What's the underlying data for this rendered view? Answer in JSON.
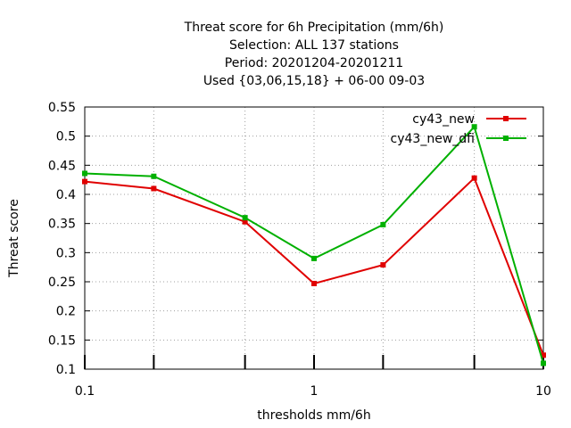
{
  "chart_data": {
    "type": "line",
    "title_lines": [
      "Threat score  for 6h Precipitation (mm/6h)",
      "Selection: ALL    137 stations",
      "Period: 20201204-20201211",
      "Used {03,06,15,18} + 06-00 09-03"
    ],
    "xlabel": "thresholds mm/6h",
    "ylabel": "Threat score",
    "x_scale": "log",
    "xlim": [
      0.1,
      10
    ],
    "ylim": [
      0.1,
      0.55
    ],
    "x_ticks": [
      "0.1",
      "1",
      "10"
    ],
    "y_ticks": [
      "0.1",
      "0.15",
      "0.2",
      "0.25",
      "0.3",
      "0.35",
      "0.4",
      "0.45",
      "0.5",
      "0.55"
    ],
    "x_minor_ticks": [
      0.2,
      0.5,
      2,
      5
    ],
    "grid": true,
    "legend_position": "top-right",
    "series": [
      {
        "name": "cy43_new",
        "color": "#e00000",
        "points": [
          [
            0.1,
            0.422
          ],
          [
            0.2,
            0.41
          ],
          [
            0.5,
            0.353
          ],
          [
            1,
            0.247
          ],
          [
            2,
            0.279
          ],
          [
            5,
            0.428
          ],
          [
            10,
            0.124
          ]
        ]
      },
      {
        "name": "cy43_new_dfi",
        "color": "#00b000",
        "points": [
          [
            0.1,
            0.436
          ],
          [
            0.2,
            0.431
          ],
          [
            0.5,
            0.36
          ],
          [
            1,
            0.29
          ],
          [
            2,
            0.348
          ],
          [
            5,
            0.516
          ],
          [
            10,
            0.11
          ]
        ]
      }
    ]
  }
}
